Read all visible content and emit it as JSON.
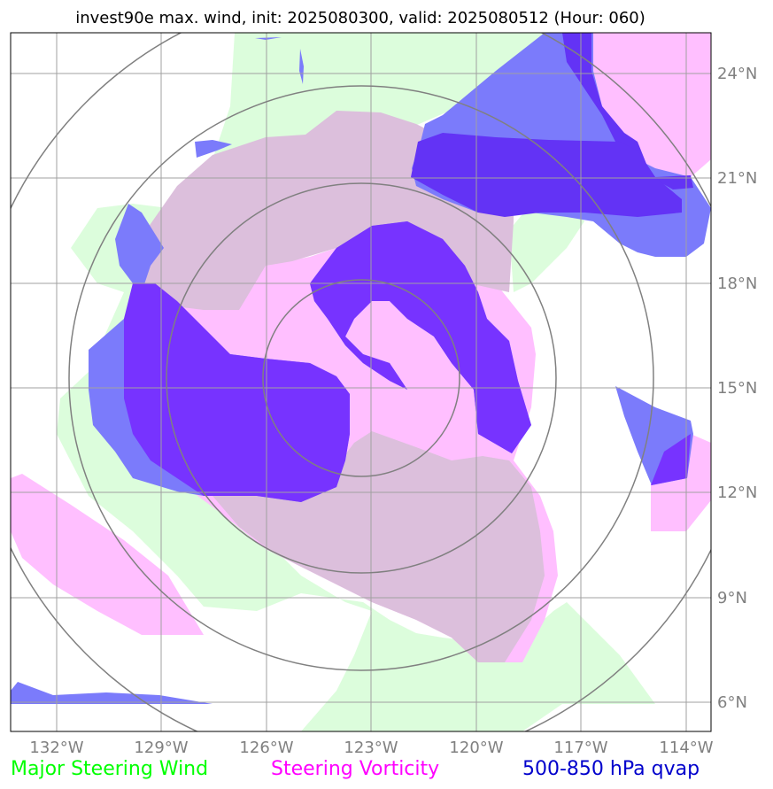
{
  "title": "invest90e max. wind, init: 2025080300, valid: 2025080512 (Hour: 060)",
  "x_ticks": [
    "132°W",
    "129°W",
    "126°W",
    "123°W",
    "120°W",
    "117°W",
    "114°W"
  ],
  "y_ticks": [
    "24°N",
    "21°N",
    "18°N",
    "15°N",
    "12°N",
    "9°N",
    "6°N"
  ],
  "legend": {
    "wind": "Major Steering Wind",
    "vorticity": "Steering Vorticity",
    "qvap": "500-850 hPa qvap"
  },
  "colors": {
    "wind": "#00ff00",
    "wind_fill": "#dcfddc",
    "vorticity": "#ff00ff",
    "vorticity_fill": "#ffbfff",
    "qvap": "#0000cc",
    "qvap_fill": "#7b7bfb",
    "overlap_fill": "#dcbfdc"
  },
  "map_extent": {
    "lon": [
      -133.3,
      -113.7
    ],
    "lat": [
      5.2,
      25.2
    ]
  },
  "range_rings_deg": [
    3,
    6,
    9,
    12
  ]
}
